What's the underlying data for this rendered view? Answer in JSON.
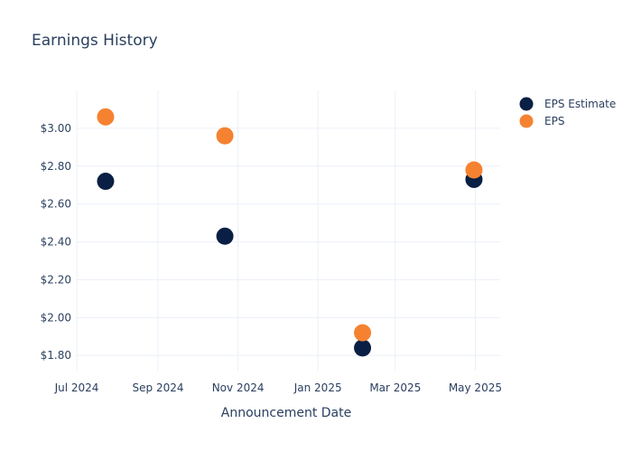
{
  "chart_data": {
    "type": "scatter",
    "title": "Earnings History",
    "xlabel": "Announcement Date",
    "ylabel": "",
    "x_range": [
      "2024-07-01",
      "2025-05-20"
    ],
    "ylim": [
      1.72,
      3.2
    ],
    "x_ticks": [
      {
        "date": "2024-07-01",
        "label": "Jul 2024"
      },
      {
        "date": "2024-09-01",
        "label": "Sep 2024"
      },
      {
        "date": "2024-11-01",
        "label": "Nov 2024"
      },
      {
        "date": "2025-01-01",
        "label": "Jan 2025"
      },
      {
        "date": "2025-03-01",
        "label": "Mar 2025"
      },
      {
        "date": "2025-05-01",
        "label": "May 2025"
      }
    ],
    "y_ticks": [
      {
        "value": 1.8,
        "label": "$1.80"
      },
      {
        "value": 2.0,
        "label": "$2.00"
      },
      {
        "value": 2.2,
        "label": "$2.20"
      },
      {
        "value": 2.4,
        "label": "$2.40"
      },
      {
        "value": 2.6,
        "label": "$2.60"
      },
      {
        "value": 2.8,
        "label": "$2.80"
      },
      {
        "value": 3.0,
        "label": "$3.00"
      }
    ],
    "grid": true,
    "legend_position": "top-right",
    "series": [
      {
        "name": "EPS Estimate",
        "color": "#0a1f44",
        "points": [
          {
            "x": "2024-07-23",
            "y": 2.72
          },
          {
            "x": "2024-10-22",
            "y": 2.43
          },
          {
            "x": "2025-02-04",
            "y": 1.84
          },
          {
            "x": "2025-04-30",
            "y": 2.73
          }
        ]
      },
      {
        "name": "EPS",
        "color": "#f58231",
        "points": [
          {
            "x": "2024-07-23",
            "y": 3.06
          },
          {
            "x": "2024-10-22",
            "y": 2.96
          },
          {
            "x": "2025-02-04",
            "y": 1.92
          },
          {
            "x": "2025-04-30",
            "y": 2.78
          }
        ]
      }
    ]
  }
}
